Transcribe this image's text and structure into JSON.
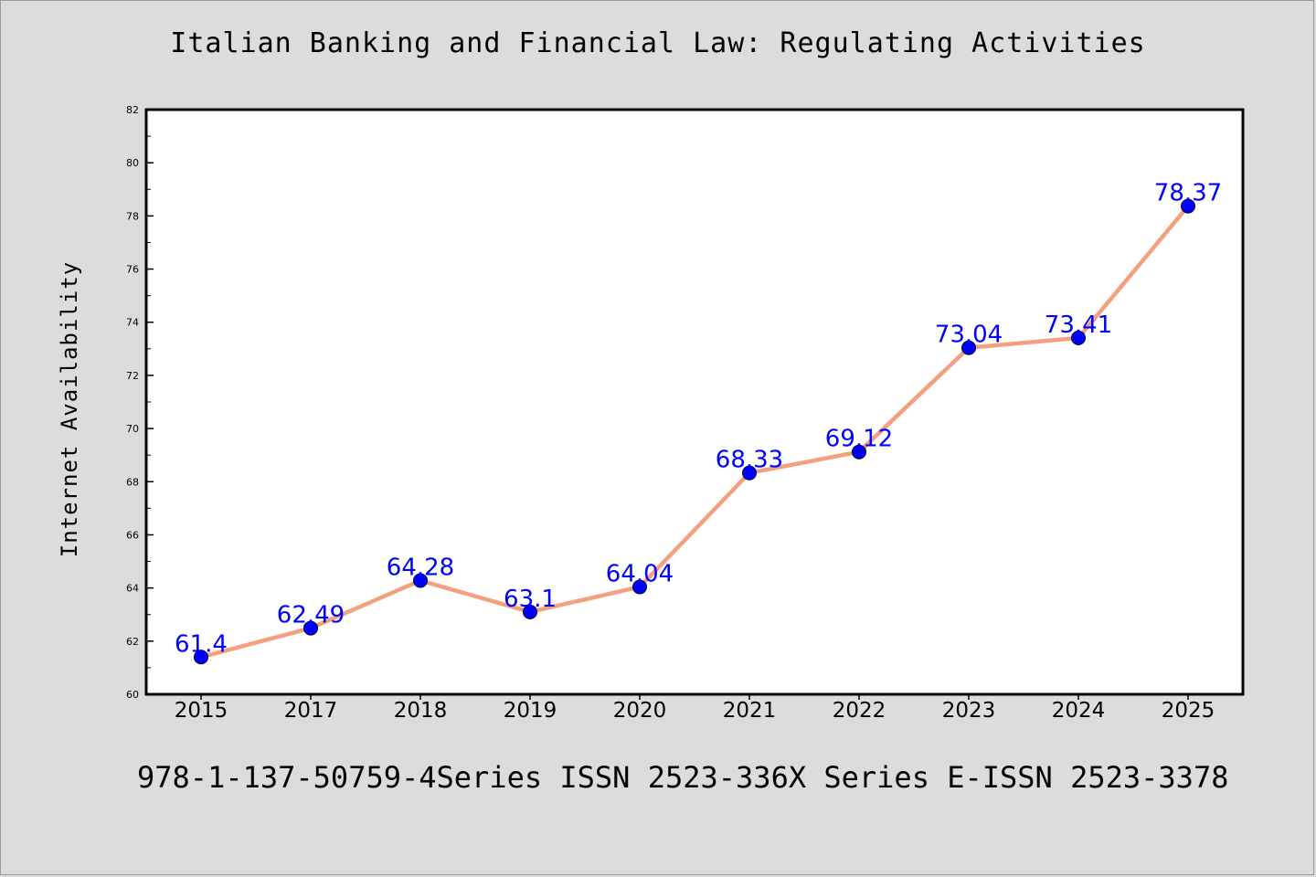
{
  "chart_data": {
    "type": "line",
    "title": "Italian Banking and Financial Law: Regulating Activities",
    "xlabel": "",
    "ylabel": "Internet Availability",
    "categories": [
      "2015",
      "2017",
      "2018",
      "2019",
      "2020",
      "2021",
      "2022",
      "2023",
      "2024",
      "2025"
    ],
    "series": [
      {
        "values": [
          61.4,
          62.49,
          64.28,
          63.1,
          64.04,
          68.33,
          69.12,
          73.04,
          73.41,
          78.37
        ],
        "data_labels": [
          "61.4",
          "62.49",
          "64.28",
          "63.1",
          "64.04",
          "68.33",
          "69.12",
          "73.04",
          "73.41",
          "78.37"
        ],
        "line_color": "#f4a07e",
        "marker_color": "#0000ff"
      }
    ],
    "ylim": [
      60,
      82
    ],
    "yticks": [
      60,
      62,
      64,
      66,
      68,
      70,
      72,
      74,
      76,
      78,
      80,
      82
    ],
    "grid": false,
    "legend": "none"
  },
  "footer": {
    "text": "978-1-137-50759-4Series ISSN 2523-336X Series E-ISSN 2523-3378"
  },
  "colors": {
    "background": "#dcdcdc",
    "plot_area": "#ffffff",
    "label": "#0000ff"
  }
}
